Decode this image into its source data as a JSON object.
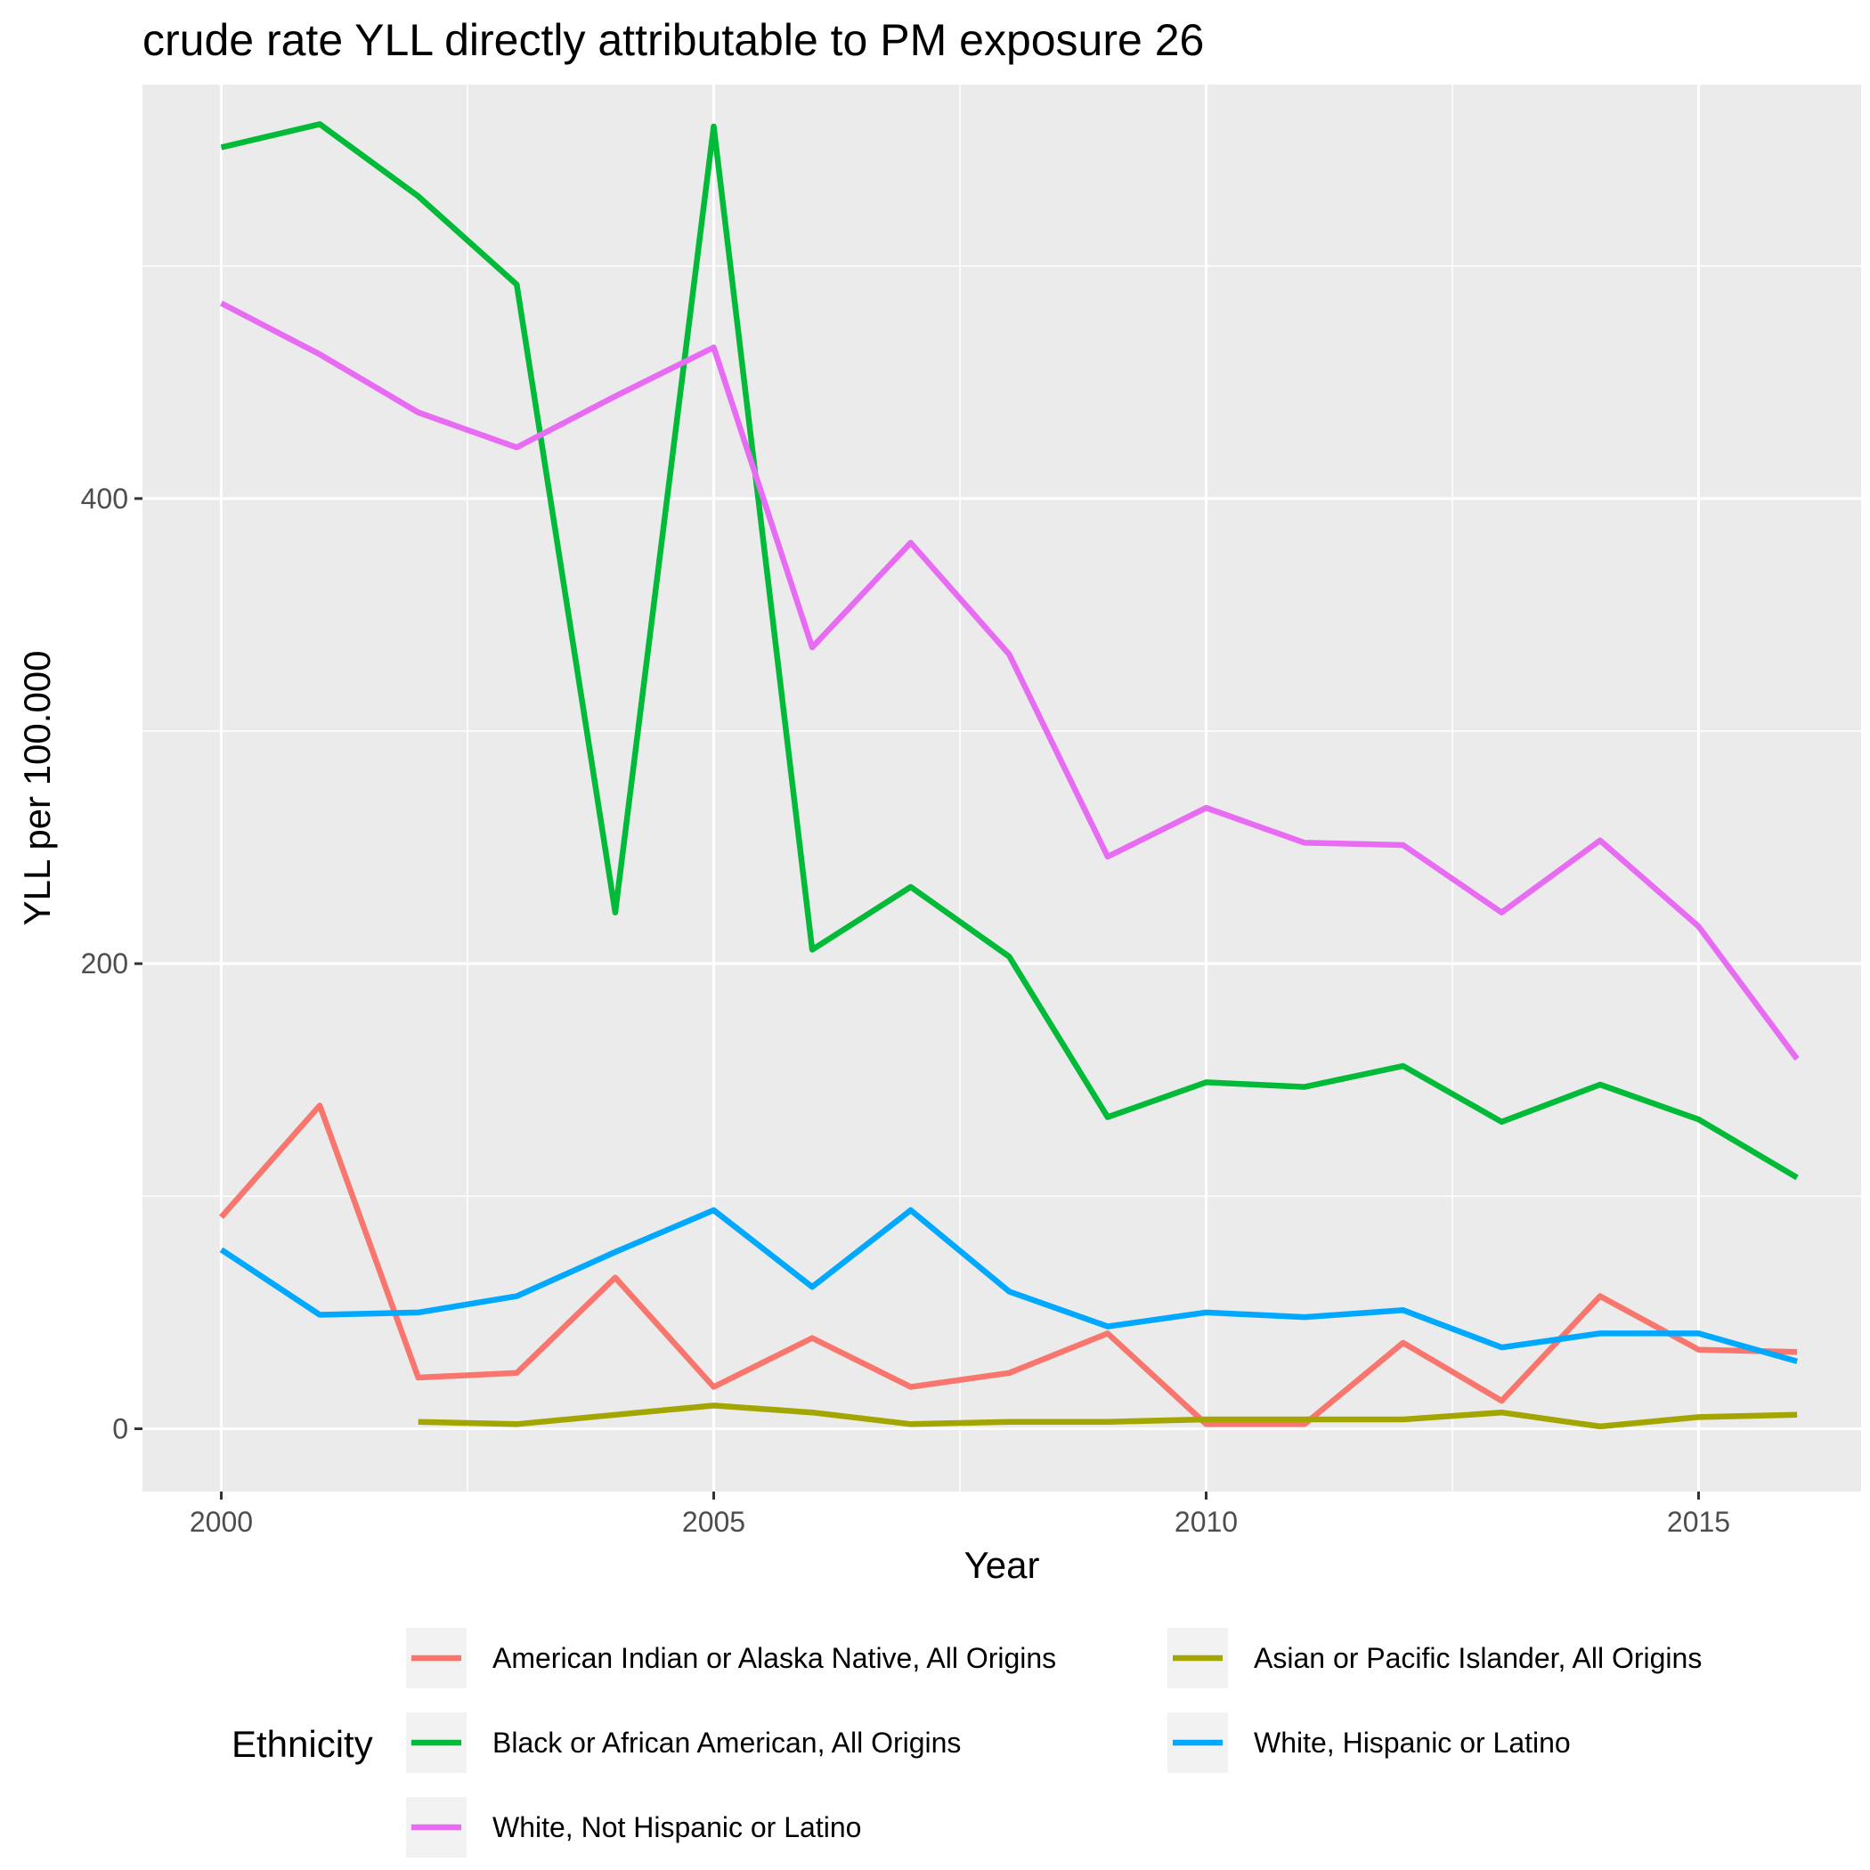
{
  "chart_data": {
    "type": "line",
    "title": "crude rate YLL directly attributable to PM exposure 26",
    "xlabel": "Year",
    "ylabel": "YLL per 100.000",
    "xlim": [
      1999.2,
      2016.65
    ],
    "ylim": [
      -27,
      578
    ],
    "x_ticks": [
      2000,
      2005,
      2010,
      2015
    ],
    "x_tick_labels": [
      "2000",
      "2005",
      "2010",
      "2015"
    ],
    "y_ticks": [
      0,
      200,
      400
    ],
    "y_tick_labels": [
      "0",
      "200",
      "400"
    ],
    "y_minor_ticks": [
      100,
      300,
      500
    ],
    "x_minor_ticks": [
      2002.5,
      2007.5,
      2012.5
    ],
    "grid": true,
    "legend": {
      "title": "Ethnicity",
      "position": "bottom",
      "columns": 2
    },
    "series": [
      {
        "name": "American Indian or Alaska Native, All Origins",
        "color": "#F8766D",
        "x": [
          2000,
          2001,
          2002,
          2003,
          2004,
          2005,
          2006,
          2007,
          2008,
          2009,
          2010,
          2011,
          2012,
          2013,
          2014,
          2015,
          2016
        ],
        "values": [
          91,
          139,
          22,
          24,
          65,
          18,
          39,
          18,
          24,
          41,
          2,
          2,
          37,
          12,
          57,
          34,
          33
        ]
      },
      {
        "name": "Asian or Pacific Islander, All Origins",
        "color": "#A3A500",
        "x": [
          2002,
          2003,
          2004,
          2005,
          2006,
          2007,
          2008,
          2009,
          2010,
          2011,
          2012,
          2013,
          2014,
          2015,
          2016
        ],
        "values": [
          3,
          2,
          6,
          10,
          7,
          2,
          3,
          3,
          4,
          4,
          4,
          7,
          1,
          5,
          6
        ]
      },
      {
        "name": "Black or African American, All Origins",
        "color": "#00BA38",
        "x": [
          2000,
          2001,
          2002,
          2003,
          2004,
          2005,
          2006,
          2007,
          2008,
          2009,
          2010,
          2011,
          2012,
          2013,
          2014,
          2015,
          2016
        ],
        "values": [
          551,
          561,
          530,
          492,
          222,
          560,
          206,
          233,
          203,
          134,
          149,
          147,
          156,
          132,
          148,
          133,
          108
        ]
      },
      {
        "name": "White, Hispanic or Latino",
        "color": "#00A9FF",
        "x": [
          2000,
          2001,
          2002,
          2003,
          2004,
          2005,
          2006,
          2007,
          2008,
          2009,
          2010,
          2011,
          2012,
          2013,
          2014,
          2015,
          2016
        ],
        "values": [
          77,
          49,
          50,
          57,
          76,
          94,
          61,
          94,
          59,
          44,
          50,
          48,
          51,
          35,
          41,
          41,
          29
        ]
      },
      {
        "name": "White, Not Hispanic or Latino",
        "color": "#E76BF3",
        "x": [
          2000,
          2001,
          2002,
          2003,
          2004,
          2005,
          2006,
          2007,
          2008,
          2009,
          2010,
          2011,
          2012,
          2013,
          2014,
          2015,
          2016
        ],
        "values": [
          484,
          462,
          437,
          422,
          444,
          465,
          336,
          381,
          333,
          246,
          267,
          252,
          251,
          222,
          253,
          216,
          159
        ]
      }
    ],
    "legend_order": [
      "American Indian or Alaska Native, All Origins",
      "Asian or Pacific Islander, All Origins",
      "Black or African American, All Origins",
      "White, Hispanic or Latino",
      "White, Not Hispanic or Latino"
    ]
  }
}
